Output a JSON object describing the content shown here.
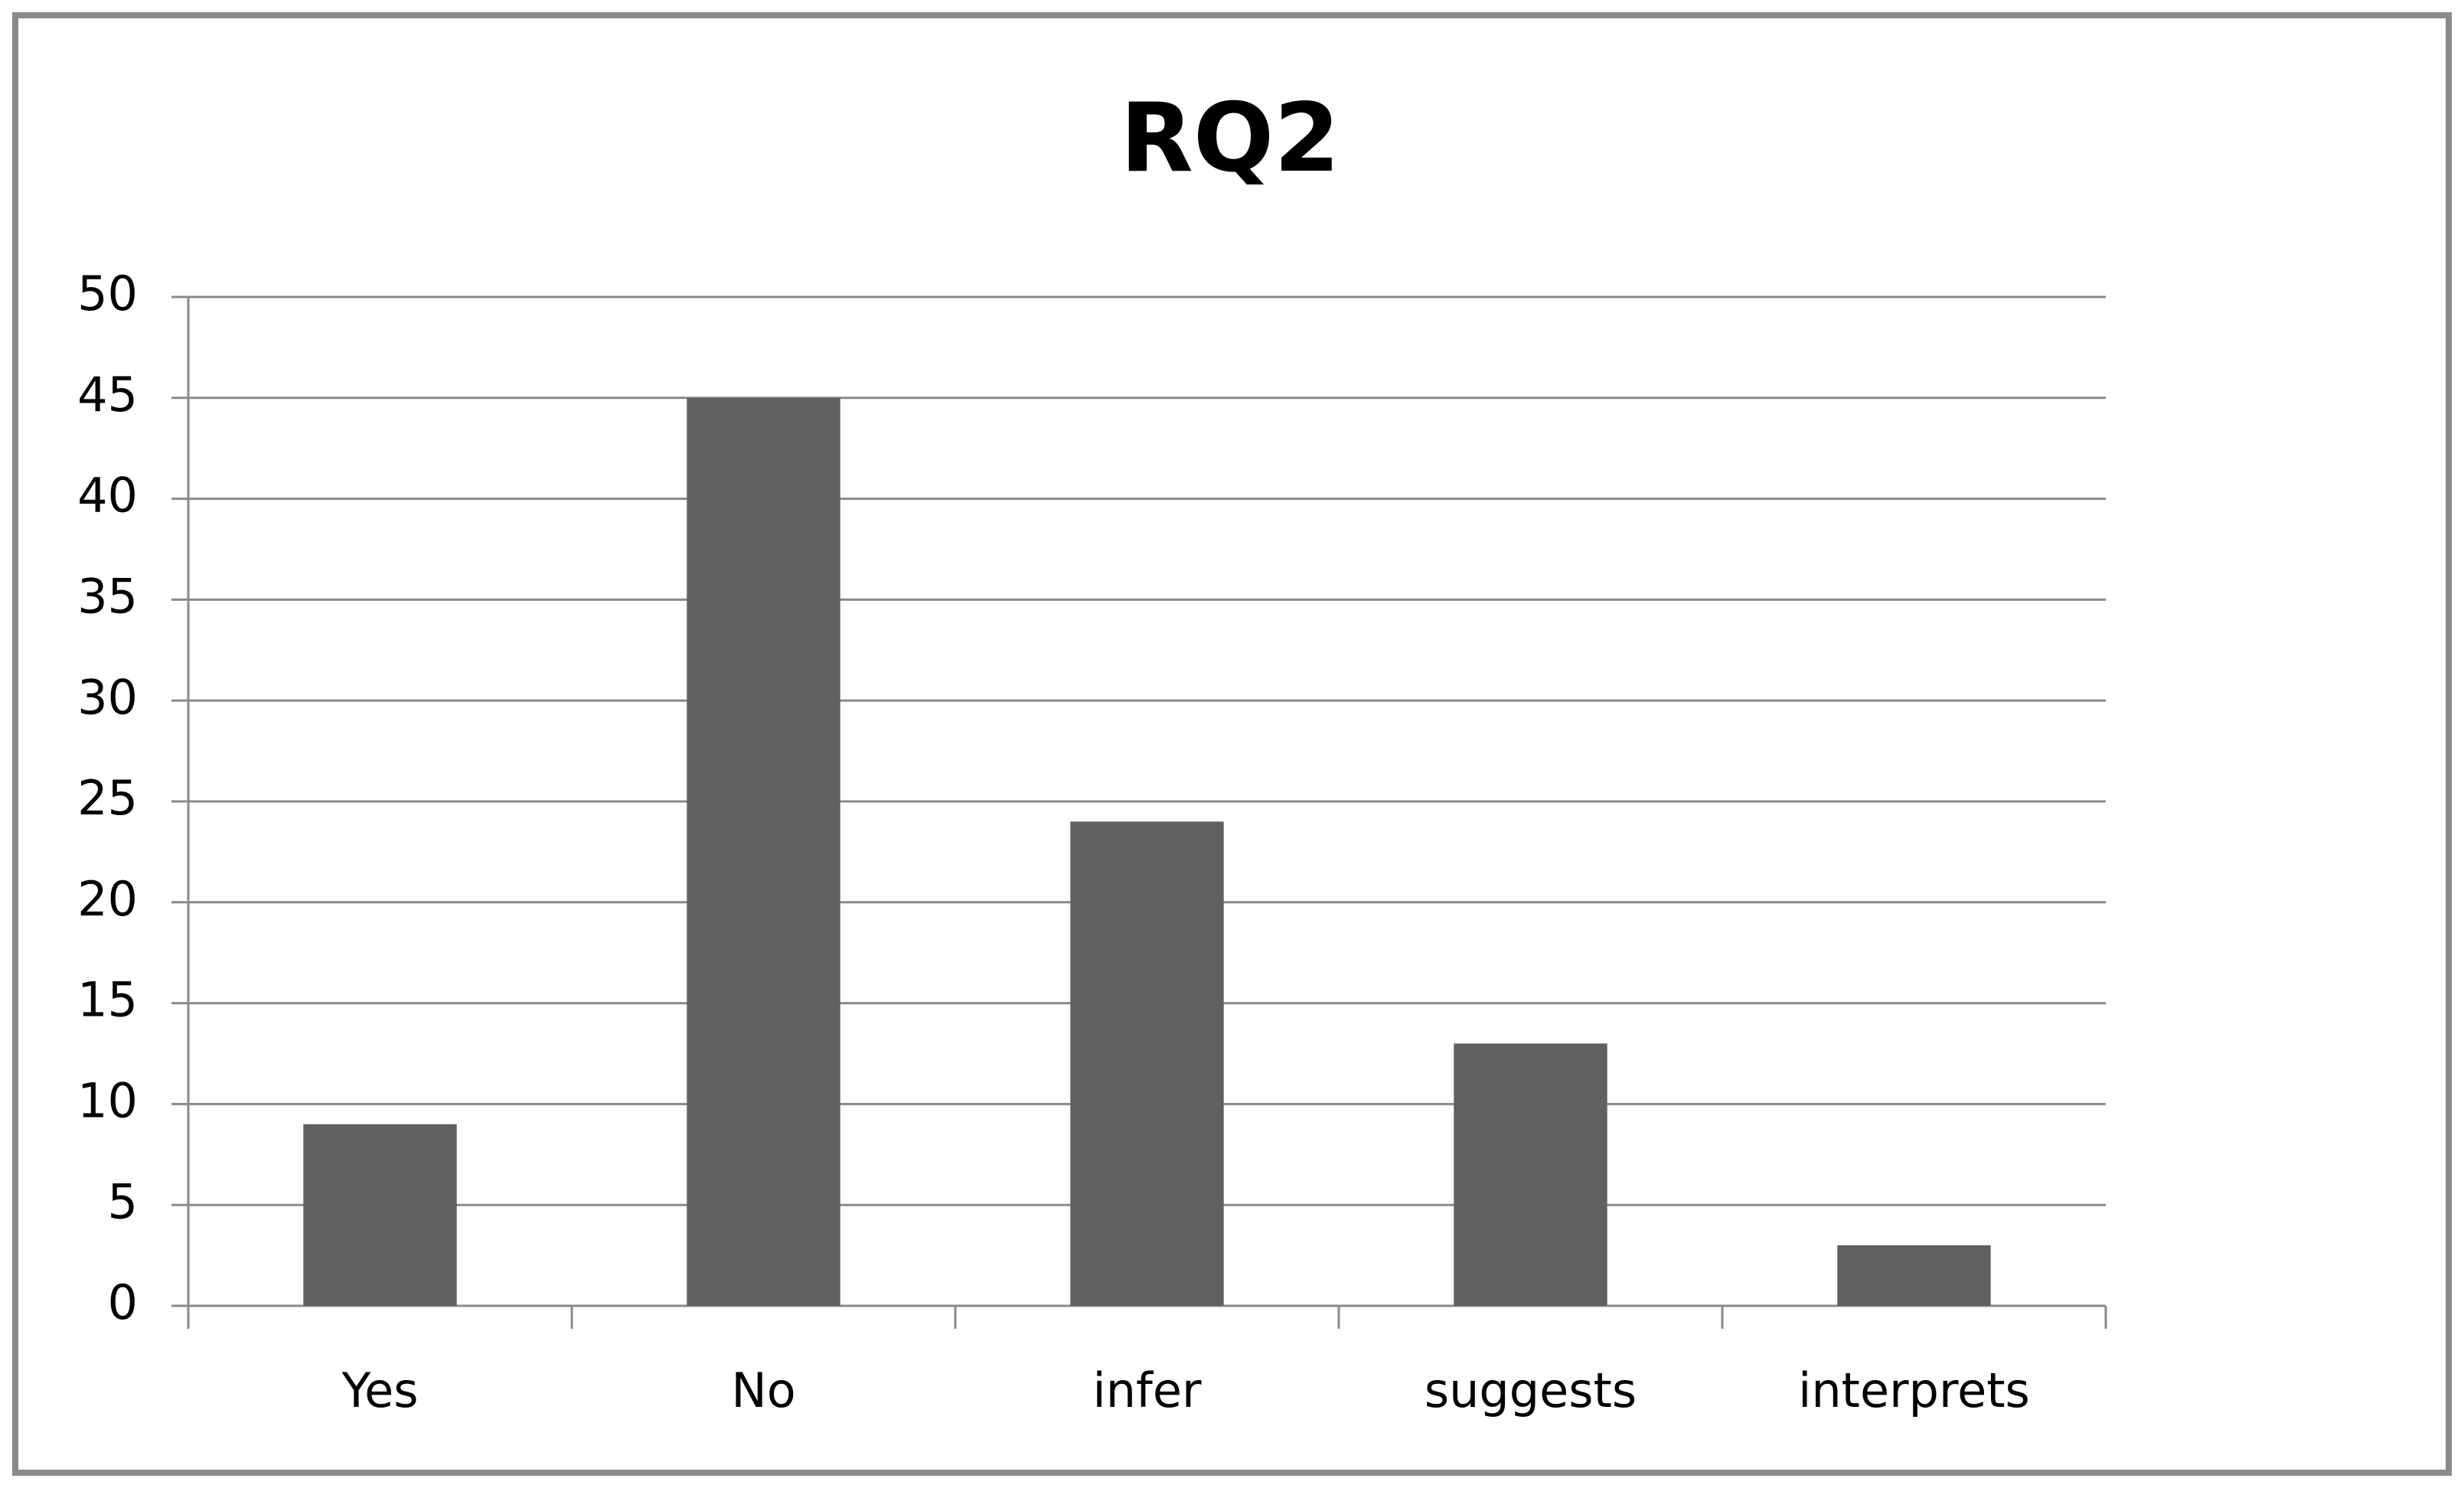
{
  "chart_data": {
    "type": "bar",
    "title": "RQ2",
    "categories": [
      "Yes",
      "No",
      "infer",
      "suggests",
      "interprets"
    ],
    "values": [
      9,
      45,
      24,
      13,
      3
    ],
    "color": "#606060",
    "ylim": [
      0,
      50
    ],
    "yticks": [
      0,
      5,
      10,
      15,
      20,
      25,
      30,
      35,
      40,
      45,
      50
    ],
    "grid": true
  }
}
